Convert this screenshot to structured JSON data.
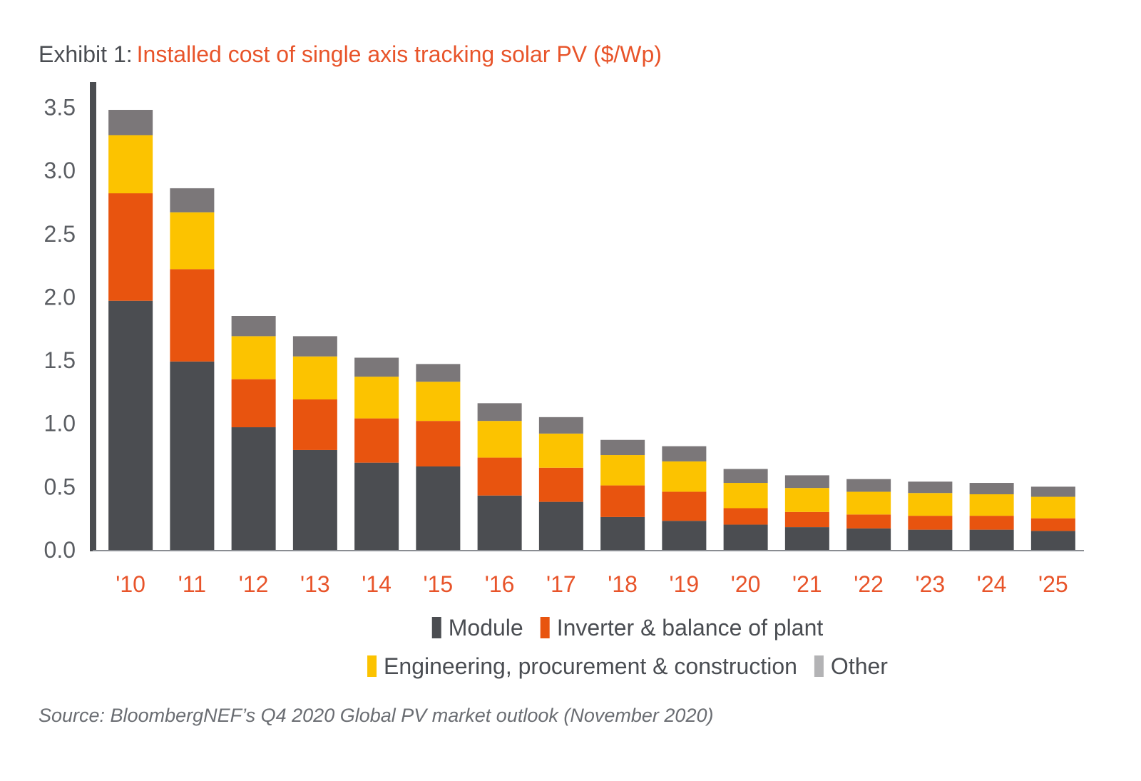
{
  "title": {
    "prefix": "Exhibit 1:",
    "main": "Installed cost of single axis tracking solar PV ($/Wp)"
  },
  "source": "Source: BloombergNEF’s Q4 2020 Global PV market outlook (November 2020)",
  "colors": {
    "module": "#4b4d51",
    "inverter_bop": "#e8540f",
    "epc": "#fcc300",
    "other": "#7b7779",
    "axis": "#4b4d51",
    "x_labels": "#e8542a",
    "title_accent": "#e8542a"
  },
  "chart_data": {
    "type": "bar",
    "stacked": true,
    "title": "Installed cost of single axis tracking solar PV ($/Wp)",
    "xlabel": "",
    "ylabel": "",
    "ylim": [
      0,
      3.7
    ],
    "yticks": [
      "0.0",
      "0.5",
      "1.0",
      "1.5",
      "2.0",
      "2.5",
      "3.0",
      "3.5"
    ],
    "grid": false,
    "legend_position": "bottom",
    "categories": [
      "'10",
      "'11",
      "'12",
      "'13",
      "'14",
      "'15",
      "'16",
      "'17",
      "'18",
      "'19",
      "'20",
      "'21",
      "'22",
      "'23",
      "'24",
      "'25"
    ],
    "series": [
      {
        "name": "Module",
        "legend_label": "Module",
        "color": "#4b4d51",
        "values": [
          1.97,
          1.49,
          0.97,
          0.79,
          0.69,
          0.66,
          0.43,
          0.38,
          0.26,
          0.23,
          0.2,
          0.18,
          0.17,
          0.16,
          0.16,
          0.15
        ]
      },
      {
        "name": "Inverter & balance of plant",
        "legend_label": "Inverter & balance of plant",
        "color": "#e8540f",
        "values": [
          0.85,
          0.73,
          0.38,
          0.4,
          0.35,
          0.36,
          0.3,
          0.27,
          0.25,
          0.23,
          0.13,
          0.12,
          0.11,
          0.11,
          0.11,
          0.1
        ]
      },
      {
        "name": "Engineering, procurement & construction",
        "legend_label": "Engineering, procurement & construction",
        "color": "#fcc300",
        "values": [
          0.46,
          0.45,
          0.34,
          0.34,
          0.33,
          0.31,
          0.29,
          0.27,
          0.24,
          0.24,
          0.2,
          0.19,
          0.18,
          0.18,
          0.17,
          0.17
        ]
      },
      {
        "name": "Other",
        "legend_label": "Other",
        "color": "#7b7779",
        "values": [
          0.2,
          0.19,
          0.16,
          0.16,
          0.15,
          0.14,
          0.14,
          0.13,
          0.12,
          0.12,
          0.11,
          0.1,
          0.1,
          0.09,
          0.09,
          0.08
        ]
      }
    ]
  }
}
